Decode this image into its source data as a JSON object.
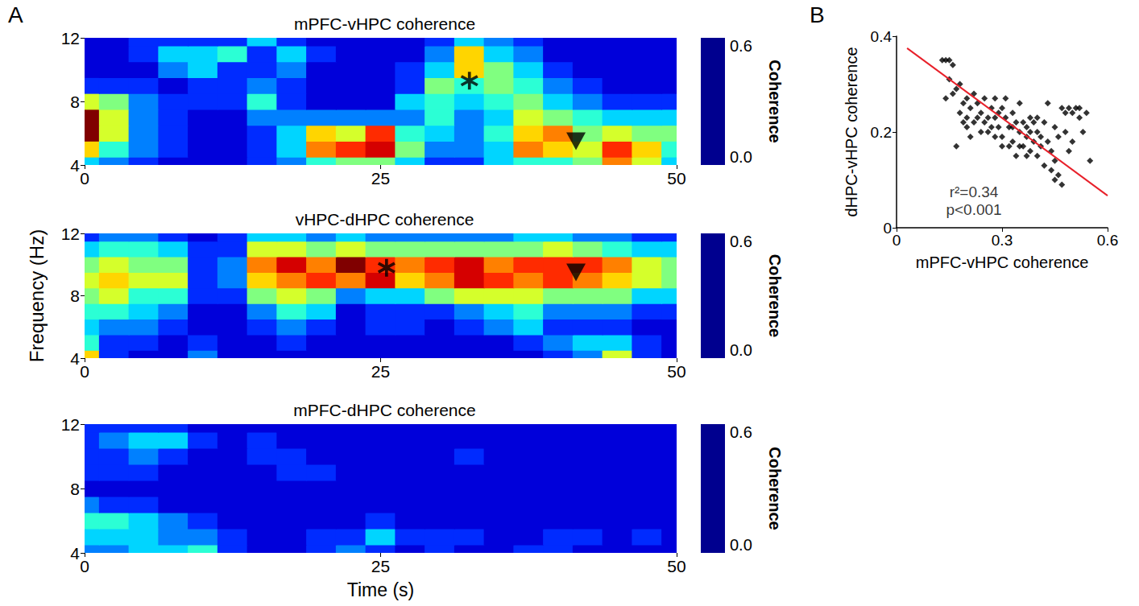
{
  "chart_data": [
    {
      "type": "heatmap",
      "panel": "A",
      "title": "mPFC-vHPC coherence",
      "x": [
        0,
        2.5,
        5,
        7.5,
        10,
        12.5,
        15,
        17.5,
        20,
        22.5,
        25,
        27.5,
        30,
        32.5,
        35,
        37.5,
        40,
        42.5,
        45,
        47.5,
        50
      ],
      "y": [
        4,
        5,
        6,
        7,
        8,
        9,
        10,
        11,
        12
      ],
      "values": [
        [
          0.2,
          0.15,
          0.1,
          0.05,
          0.05,
          0.05,
          0.1,
          0.15,
          0.25,
          0.3,
          0.3,
          0.2,
          0.1,
          0.1,
          0.2,
          0.25,
          0.25,
          0.3,
          0.45,
          0.35,
          0.2
        ],
        [
          0.4,
          0.25,
          0.15,
          0.1,
          0.05,
          0.05,
          0.1,
          0.2,
          0.45,
          0.5,
          0.55,
          0.3,
          0.15,
          0.15,
          0.2,
          0.45,
          0.4,
          0.35,
          0.5,
          0.4,
          0.25
        ],
        [
          0.6,
          0.35,
          0.15,
          0.1,
          0.05,
          0.05,
          0.1,
          0.2,
          0.4,
          0.35,
          0.5,
          0.25,
          0.2,
          0.15,
          0.25,
          0.4,
          0.45,
          0.3,
          0.35,
          0.3,
          0.3
        ],
        [
          0.6,
          0.35,
          0.15,
          0.1,
          0.05,
          0.05,
          0.15,
          0.15,
          0.15,
          0.15,
          0.15,
          0.15,
          0.25,
          0.15,
          0.2,
          0.35,
          0.3,
          0.25,
          0.2,
          0.2,
          0.2
        ],
        [
          0.35,
          0.3,
          0.15,
          0.1,
          0.1,
          0.1,
          0.25,
          0.1,
          0.05,
          0.05,
          0.05,
          0.2,
          0.25,
          0.2,
          0.25,
          0.3,
          0.2,
          0.15,
          0.1,
          0.1,
          0.1
        ],
        [
          0.1,
          0.1,
          0.1,
          0.05,
          0.1,
          0.1,
          0.15,
          0.1,
          0.05,
          0.05,
          0.05,
          0.1,
          0.3,
          0.25,
          0.3,
          0.25,
          0.15,
          0.1,
          0.05,
          0.05,
          0.05
        ],
        [
          0.05,
          0.05,
          0.05,
          0.15,
          0.2,
          0.1,
          0.1,
          0.15,
          0.05,
          0.05,
          0.05,
          0.1,
          0.2,
          0.4,
          0.3,
          0.2,
          0.1,
          0.05,
          0.05,
          0.05,
          0.05
        ],
        [
          0.05,
          0.05,
          0.1,
          0.2,
          0.2,
          0.25,
          0.1,
          0.2,
          0.1,
          0.05,
          0.05,
          0.05,
          0.15,
          0.4,
          0.2,
          0.15,
          0.05,
          0.05,
          0.05,
          0.05,
          0.05
        ],
        [
          0.05,
          0.05,
          0.1,
          0.1,
          0.1,
          0.1,
          0.2,
          0.1,
          0.05,
          0.05,
          0.05,
          0.05,
          0.1,
          0.2,
          0.15,
          0.1,
          0.05,
          0.05,
          0.05,
          0.05,
          0.05
        ]
      ],
      "xlim": [
        0,
        50
      ],
      "xticks": [
        0,
        25,
        50
      ],
      "ylim": [
        4,
        12
      ],
      "yticks": [
        4,
        8,
        12
      ],
      "colorbar": {
        "title": "Coherence",
        "range": [
          0,
          0.6
        ],
        "ticks": [
          {
            "value": 0,
            "label": "0.0"
          },
          0.6
        ]
      },
      "markers": [
        {
          "marker": "asterisk",
          "x": 32.5,
          "y": 9.3
        },
        {
          "marker": "triangle-down",
          "x": 41.5,
          "y": 5.5
        }
      ]
    },
    {
      "type": "heatmap",
      "title": "vHPC-dHPC coherence",
      "ylabel": "Frequency (Hz)",
      "x": [
        0,
        2.5,
        5,
        7.5,
        10,
        12.5,
        15,
        17.5,
        20,
        22.5,
        25,
        27.5,
        30,
        32.5,
        35,
        37.5,
        40,
        42.5,
        45,
        47.5,
        50
      ],
      "y": [
        4,
        5,
        6,
        7,
        8,
        9,
        10,
        11,
        12
      ],
      "values": [
        [
          0.4,
          0.1,
          0.05,
          0.05,
          0.15,
          0.05,
          0.05,
          0.05,
          0.05,
          0.05,
          0.05,
          0.05,
          0.05,
          0.05,
          0.05,
          0.05,
          0.1,
          0.15,
          0.35,
          0.1,
          0.05
        ],
        [
          0.25,
          0.1,
          0.1,
          0.05,
          0.1,
          0.05,
          0.05,
          0.1,
          0.05,
          0.05,
          0.05,
          0.05,
          0.05,
          0.05,
          0.05,
          0.1,
          0.15,
          0.2,
          0.2,
          0.1,
          0.05
        ],
        [
          0.2,
          0.15,
          0.15,
          0.1,
          0.05,
          0.05,
          0.1,
          0.15,
          0.1,
          0.05,
          0.1,
          0.1,
          0.05,
          0.1,
          0.15,
          0.2,
          0.1,
          0.1,
          0.1,
          0.05,
          0.05
        ],
        [
          0.25,
          0.25,
          0.2,
          0.15,
          0.05,
          0.05,
          0.15,
          0.25,
          0.2,
          0.05,
          0.1,
          0.1,
          0.1,
          0.15,
          0.2,
          0.25,
          0.15,
          0.15,
          0.15,
          0.1,
          0.1
        ],
        [
          0.3,
          0.35,
          0.25,
          0.25,
          0.1,
          0.1,
          0.3,
          0.35,
          0.3,
          0.15,
          0.2,
          0.2,
          0.3,
          0.35,
          0.35,
          0.35,
          0.3,
          0.3,
          0.3,
          0.2,
          0.2
        ],
        [
          0.35,
          0.4,
          0.35,
          0.35,
          0.1,
          0.15,
          0.4,
          0.45,
          0.5,
          0.45,
          0.55,
          0.4,
          0.45,
          0.55,
          0.5,
          0.45,
          0.5,
          0.45,
          0.4,
          0.35,
          0.3
        ],
        [
          0.3,
          0.35,
          0.3,
          0.3,
          0.1,
          0.15,
          0.45,
          0.55,
          0.45,
          0.6,
          0.5,
          0.45,
          0.5,
          0.55,
          0.45,
          0.5,
          0.5,
          0.5,
          0.45,
          0.35,
          0.3
        ],
        [
          0.2,
          0.25,
          0.25,
          0.2,
          0.1,
          0.1,
          0.35,
          0.35,
          0.3,
          0.35,
          0.3,
          0.3,
          0.3,
          0.3,
          0.3,
          0.3,
          0.35,
          0.3,
          0.25,
          0.2,
          0.2
        ],
        [
          0.1,
          0.15,
          0.15,
          0.1,
          0.05,
          0.1,
          0.2,
          0.2,
          0.15,
          0.2,
          0.15,
          0.15,
          0.15,
          0.15,
          0.15,
          0.2,
          0.2,
          0.15,
          0.15,
          0.1,
          0.1
        ]
      ],
      "xlim": [
        0,
        50
      ],
      "xticks": [
        0,
        25,
        50
      ],
      "ylim": [
        4,
        12
      ],
      "yticks": [
        4,
        8,
        12
      ],
      "colorbar": {
        "title": "Coherence",
        "range": [
          0,
          0.6
        ],
        "ticks": [
          {
            "value": 0,
            "label": "0.0"
          },
          0.6
        ]
      },
      "markers": [
        {
          "marker": "asterisk",
          "x": 25.5,
          "y": 9.8
        },
        {
          "marker": "triangle-down",
          "x": 41.5,
          "y": 9.5
        }
      ]
    },
    {
      "type": "heatmap",
      "title": "mPFC-dHPC coherence",
      "xlabel": "Time (s)",
      "x": [
        0,
        2.5,
        5,
        7.5,
        10,
        12.5,
        15,
        17.5,
        20,
        22.5,
        25,
        27.5,
        30,
        32.5,
        35,
        37.5,
        40,
        42.5,
        45,
        47.5,
        50
      ],
      "y": [
        4,
        5,
        6,
        7,
        8,
        9,
        10,
        11,
        12
      ],
      "values": [
        [
          0.15,
          0.15,
          0.2,
          0.2,
          0.25,
          0.1,
          0.05,
          0.05,
          0.1,
          0.15,
          0.1,
          0.05,
          0.1,
          0.05,
          0.05,
          0.1,
          0.1,
          0.05,
          0.05,
          0.05,
          0.05
        ],
        [
          0.2,
          0.2,
          0.2,
          0.15,
          0.15,
          0.1,
          0.05,
          0.05,
          0.1,
          0.1,
          0.2,
          0.1,
          0.1,
          0.1,
          0.05,
          0.05,
          0.1,
          0.1,
          0.05,
          0.1,
          0.05
        ],
        [
          0.25,
          0.25,
          0.2,
          0.15,
          0.1,
          0.05,
          0.05,
          0.05,
          0.05,
          0.05,
          0.1,
          0.05,
          0.05,
          0.05,
          0.05,
          0.05,
          0.05,
          0.05,
          0.05,
          0.05,
          0.05
        ],
        [
          0.15,
          0.1,
          0.1,
          0.05,
          0.05,
          0.05,
          0.05,
          0.05,
          0.05,
          0.05,
          0.05,
          0.05,
          0.05,
          0.05,
          0.05,
          0.05,
          0.05,
          0.05,
          0.05,
          0.05,
          0.05
        ],
        [
          0.05,
          0.05,
          0.05,
          0.05,
          0.05,
          0.05,
          0.05,
          0.05,
          0.05,
          0.05,
          0.05,
          0.05,
          0.05,
          0.05,
          0.05,
          0.05,
          0.05,
          0.05,
          0.05,
          0.05,
          0.05
        ],
        [
          0.1,
          0.1,
          0.1,
          0.05,
          0.05,
          0.05,
          0.05,
          0.1,
          0.1,
          0.05,
          0.05,
          0.05,
          0.05,
          0.05,
          0.05,
          0.05,
          0.05,
          0.05,
          0.05,
          0.05,
          0.05
        ],
        [
          0.1,
          0.1,
          0.15,
          0.1,
          0.05,
          0.05,
          0.1,
          0.1,
          0.05,
          0.05,
          0.05,
          0.05,
          0.05,
          0.1,
          0.05,
          0.05,
          0.05,
          0.05,
          0.05,
          0.05,
          0.05
        ],
        [
          0.1,
          0.15,
          0.2,
          0.2,
          0.1,
          0.05,
          0.1,
          0.05,
          0.05,
          0.05,
          0.05,
          0.05,
          0.05,
          0.05,
          0.05,
          0.05,
          0.05,
          0.05,
          0.05,
          0.05,
          0.05
        ],
        [
          0.1,
          0.1,
          0.1,
          0.1,
          0.05,
          0.05,
          0.05,
          0.05,
          0.05,
          0.05,
          0.05,
          0.05,
          0.05,
          0.05,
          0.05,
          0.05,
          0.05,
          0.05,
          0.05,
          0.05,
          0.05
        ]
      ],
      "xlim": [
        0,
        50
      ],
      "xticks": [
        0,
        25,
        50
      ],
      "ylim": [
        4,
        12
      ],
      "yticks": [
        4,
        8,
        12
      ],
      "colorbar": {
        "title": "Coherence",
        "range": [
          0,
          0.6
        ],
        "ticks": [
          {
            "value": 0,
            "label": "0.0"
          },
          0.6
        ]
      }
    },
    {
      "type": "scatter",
      "panel": "B",
      "xlabel": "mPFC-vHPC coherence",
      "ylabel": "dHPC-vHPC coherence",
      "color": "#000000",
      "marker": "diamond",
      "x": [
        0.13,
        0.14,
        0.15,
        0.16,
        0.15,
        0.17,
        0.14,
        0.16,
        0.18,
        0.19,
        0.2,
        0.18,
        0.2,
        0.21,
        0.22,
        0.23,
        0.22,
        0.24,
        0.25,
        0.25,
        0.26,
        0.27,
        0.28,
        0.28,
        0.29,
        0.3,
        0.3,
        0.31,
        0.31,
        0.32,
        0.33,
        0.33,
        0.34,
        0.35,
        0.35,
        0.36,
        0.37,
        0.37,
        0.38,
        0.38,
        0.39,
        0.4,
        0.4,
        0.41,
        0.42,
        0.42,
        0.43,
        0.44,
        0.44,
        0.45,
        0.45,
        0.46,
        0.47,
        0.47,
        0.48,
        0.49,
        0.5,
        0.51,
        0.52,
        0.52,
        0.53,
        0.54,
        0.55,
        0.43,
        0.45,
        0.48,
        0.5,
        0.38,
        0.33,
        0.27,
        0.24,
        0.21,
        0.19,
        0.17,
        0.26,
        0.29,
        0.36,
        0.39,
        0.41,
        0.32,
        0.3,
        0.23,
        0.34,
        0.37,
        0.28,
        0.35,
        0.2,
        0.46,
        0.49,
        0.4
      ],
      "y": [
        0.35,
        0.35,
        0.35,
        0.34,
        0.31,
        0.29,
        0.27,
        0.28,
        0.3,
        0.26,
        0.27,
        0.24,
        0.23,
        0.25,
        0.28,
        0.26,
        0.22,
        0.24,
        0.27,
        0.22,
        0.2,
        0.25,
        0.23,
        0.27,
        0.21,
        0.25,
        0.19,
        0.23,
        0.27,
        0.21,
        0.24,
        0.18,
        0.22,
        0.2,
        0.26,
        0.17,
        0.21,
        0.19,
        0.16,
        0.23,
        0.18,
        0.2,
        0.15,
        0.17,
        0.22,
        0.13,
        0.18,
        0.16,
        0.12,
        0.1,
        0.14,
        0.11,
        0.09,
        0.25,
        0.24,
        0.25,
        0.24,
        0.25,
        0.23,
        0.25,
        0.2,
        0.24,
        0.14,
        0.26,
        0.21,
        0.2,
        0.18,
        0.2,
        0.21,
        0.21,
        0.2,
        0.19,
        0.22,
        0.17,
        0.23,
        0.24,
        0.22,
        0.22,
        0.19,
        0.17,
        0.17,
        0.23,
        0.15,
        0.15,
        0.19,
        0.17,
        0.21,
        0.19,
        0.16,
        0.23
      ],
      "fit": {
        "x": [
          0.03,
          0.6
        ],
        "y": [
          0.375,
          0.067
        ],
        "color": "#e8202a"
      },
      "annotations": [
        {
          "text": "r²=0.34",
          "x": 0.22,
          "y": 0.075
        },
        {
          "text": "p<0.001",
          "x": 0.22,
          "y": 0.038
        }
      ],
      "xlim": [
        0,
        0.6
      ],
      "xticks": [
        0,
        0.3,
        0.6
      ],
      "ylim": [
        0,
        0.4
      ],
      "yticks": [
        0,
        0.2,
        0.4
      ]
    }
  ]
}
